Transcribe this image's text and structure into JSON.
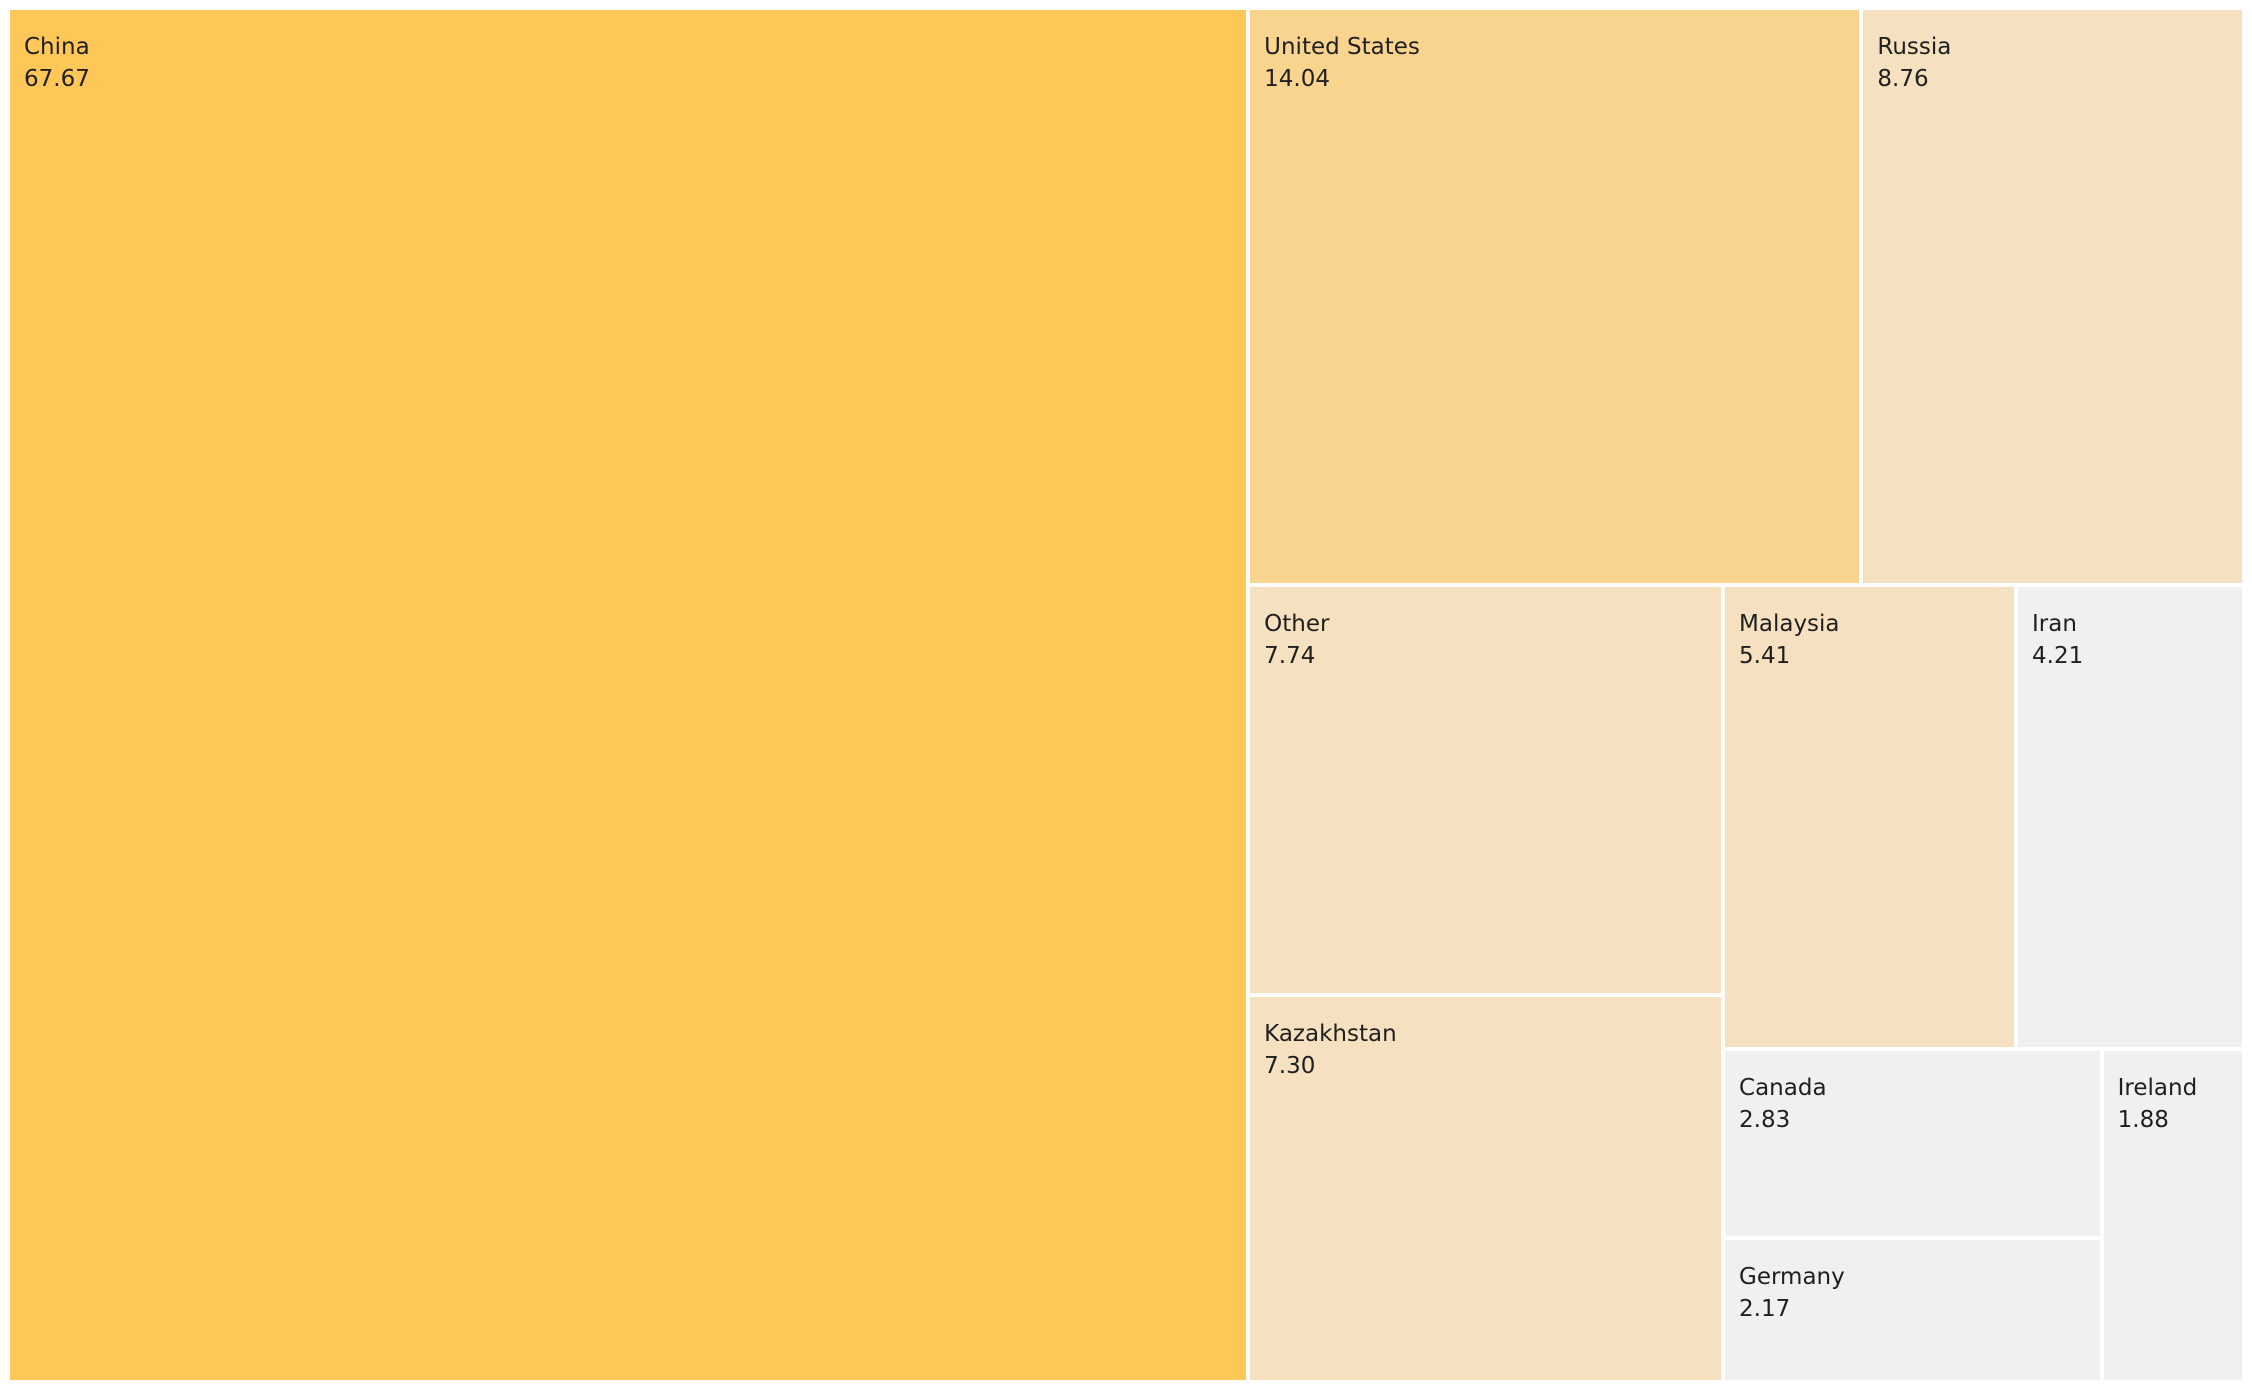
{
  "chart_data": {
    "type": "treemap",
    "title": "",
    "items": [
      {
        "name": "China",
        "value": 67.67,
        "label": "67.67",
        "color": "#FFC658"
      },
      {
        "name": "United States",
        "value": 14.04,
        "label": "14.04",
        "color": "#F9D48E"
      },
      {
        "name": "Russia",
        "value": 8.76,
        "label": "8.76",
        "color": "#F5E1BF"
      },
      {
        "name": "Other",
        "value": 7.74,
        "label": "7.74",
        "color": "#F5E1BF"
      },
      {
        "name": "Kazakhstan",
        "value": 7.3,
        "label": "7.30",
        "color": "#F5E1BF"
      },
      {
        "name": "Malaysia",
        "value": 5.41,
        "label": "5.41",
        "color": "#F5E1BF"
      },
      {
        "name": "Iran",
        "value": 4.21,
        "label": "4.21",
        "color": "#F0F0F0"
      },
      {
        "name": "Canada",
        "value": 2.83,
        "label": "2.83",
        "color": "#F0F0F0"
      },
      {
        "name": "Germany",
        "value": 2.17,
        "label": "2.17",
        "color": "#F0F0F0"
      },
      {
        "name": "Ireland",
        "value": 1.88,
        "label": "1.88",
        "color": "#F0F0F0"
      }
    ]
  }
}
